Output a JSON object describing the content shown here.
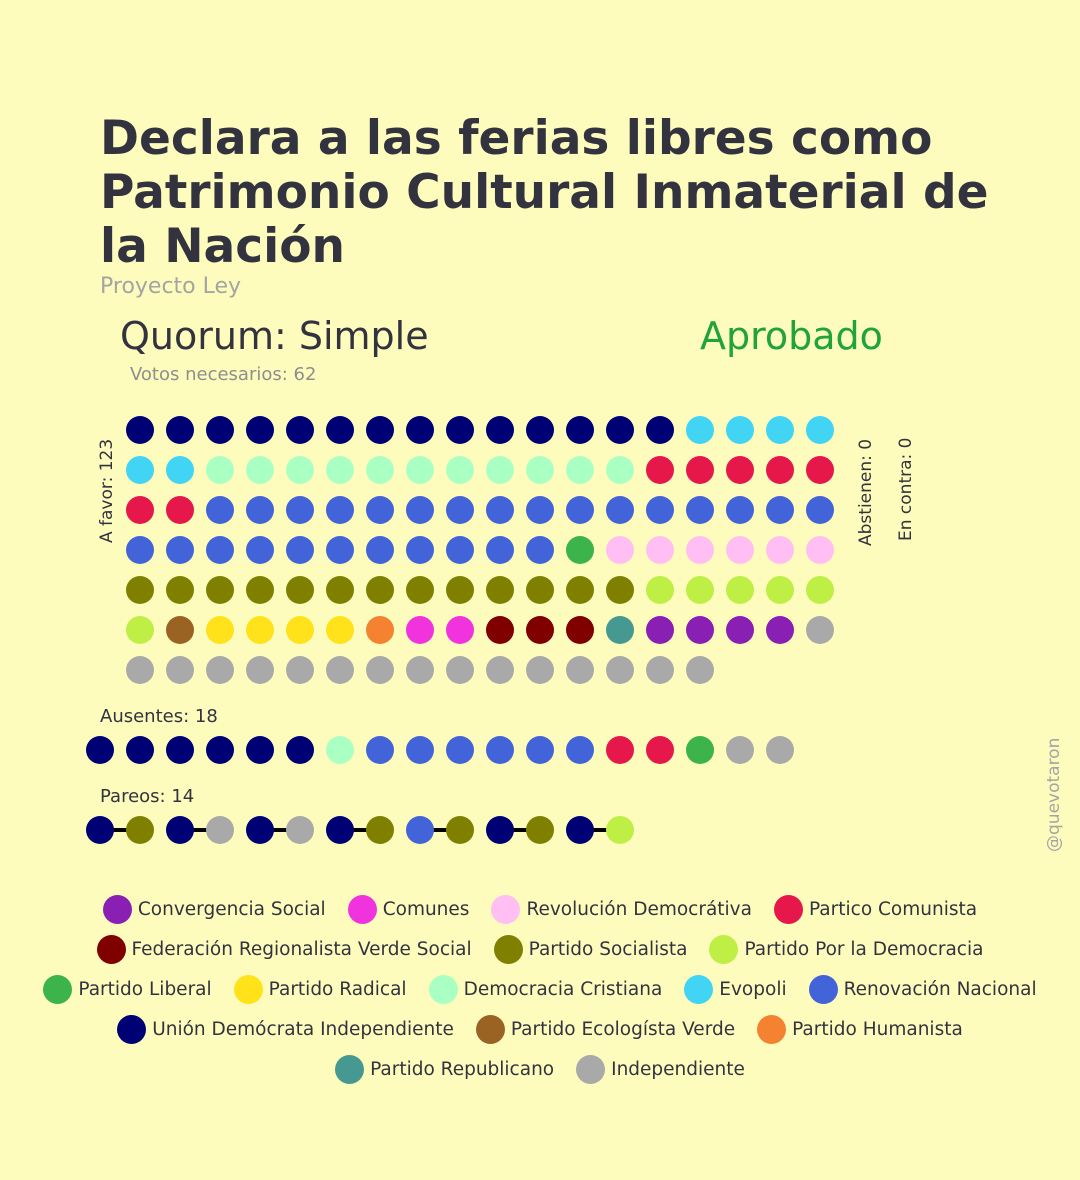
{
  "header": {
    "title": "Declara a las ferias libres como Patrimonio Cultural Inmaterial de la Nación",
    "subtitle": "Proyecto Ley",
    "quorum": "Quorum: Simple",
    "status": "Aprobado",
    "votes_needed": "Votos necesarios: 62"
  },
  "credit": "@quevotaron",
  "chart_data": {
    "type": "dot-matrix",
    "parties": [
      {
        "key": "CS",
        "name": "Convergencia Social",
        "color": "#8a1fb4"
      },
      {
        "key": "COM",
        "name": "Comunes",
        "color": "#f033dd"
      },
      {
        "key": "RD",
        "name": "Revolución Democrátiva",
        "color": "#ffbff3"
      },
      {
        "key": "PC",
        "name": "Partico Comunista",
        "color": "#e6184b"
      },
      {
        "key": "FRVS",
        "name": "Federación Regionalista Verde Social",
        "color": "#800000"
      },
      {
        "key": "PS",
        "name": "Partido Socialista",
        "color": "#808000"
      },
      {
        "key": "PPD",
        "name": "Partido Por la Democracia",
        "color": "#bfef45"
      },
      {
        "key": "PL",
        "name": "Partido Liberal",
        "color": "#3cb44b"
      },
      {
        "key": "PR",
        "name": "Partido Radical",
        "color": "#ffe219"
      },
      {
        "key": "DC",
        "name": "Democracia Cristiana",
        "color": "#aaffc3"
      },
      {
        "key": "EVO",
        "name": "Evopoli",
        "color": "#42d4f4"
      },
      {
        "key": "RN",
        "name": "Renovación Nacional",
        "color": "#4363d8"
      },
      {
        "key": "UDI",
        "name": "Unión Demócrata Independiente",
        "color": "#000075"
      },
      {
        "key": "PEV",
        "name": "Partido Ecologísta Verde",
        "color": "#9a6324"
      },
      {
        "key": "PH",
        "name": "Partido Humanista",
        "color": "#f58231"
      },
      {
        "key": "REP",
        "name": "Partido Republicano",
        "color": "#469990"
      },
      {
        "key": "IND",
        "name": "Independiente",
        "color": "#a9a9a9"
      }
    ],
    "legend_rows": [
      [
        "CS",
        "COM",
        "RD",
        "PC"
      ],
      [
        "FRVS",
        "PS",
        "PPD"
      ],
      [
        "PL",
        "PR",
        "DC",
        "EVO",
        "RN"
      ],
      [
        "UDI",
        "PEV",
        "PH"
      ],
      [
        "REP",
        "IND"
      ]
    ],
    "a_favor": {
      "label": "A favor: 123",
      "count": 123,
      "votes": [
        "UDI",
        "UDI",
        "UDI",
        "UDI",
        "UDI",
        "UDI",
        "UDI",
        "UDI",
        "UDI",
        "UDI",
        "UDI",
        "UDI",
        "UDI",
        "UDI",
        "EVO",
        "EVO",
        "EVO",
        "EVO",
        "EVO",
        "EVO",
        "DC",
        "DC",
        "DC",
        "DC",
        "DC",
        "DC",
        "DC",
        "DC",
        "DC",
        "DC",
        "DC",
        "PC",
        "PC",
        "PC",
        "PC",
        "PC",
        "PC",
        "PC",
        "RN",
        "RN",
        "RN",
        "RN",
        "RN",
        "RN",
        "RN",
        "RN",
        "RN",
        "RN",
        "RN",
        "RN",
        "RN",
        "RN",
        "RN",
        "RN",
        "RN",
        "RN",
        "RN",
        "RN",
        "RN",
        "RN",
        "RN",
        "RN",
        "RN",
        "RN",
        "RN",
        "PL",
        "RD",
        "RD",
        "RD",
        "RD",
        "RD",
        "RD",
        "PS",
        "PS",
        "PS",
        "PS",
        "PS",
        "PS",
        "PS",
        "PS",
        "PS",
        "PS",
        "PS",
        "PS",
        "PS",
        "PPD",
        "PPD",
        "PPD",
        "PPD",
        "PPD",
        "PPD",
        "PEV",
        "PR",
        "PR",
        "PR",
        "PR",
        "PH",
        "COM",
        "COM",
        "FRVS",
        "FRVS",
        "FRVS",
        "REP",
        "CS",
        "CS",
        "CS",
        "CS",
        "IND",
        "IND",
        "IND",
        "IND",
        "IND",
        "IND",
        "IND",
        "IND",
        "IND",
        "IND",
        "IND",
        "IND",
        "IND",
        "IND",
        "IND",
        "IND"
      ]
    },
    "abstienen": {
      "label": "Abstienen: 0",
      "count": 0
    },
    "en_contra": {
      "label": "En contra: 0",
      "count": 0
    },
    "ausentes": {
      "label": "Ausentes: 18",
      "count": 18,
      "votes": [
        "UDI",
        "UDI",
        "UDI",
        "UDI",
        "UDI",
        "UDI",
        "DC",
        "RN",
        "RN",
        "RN",
        "RN",
        "RN",
        "RN",
        "PC",
        "PC",
        "PL",
        "IND",
        "IND"
      ]
    },
    "pareos": {
      "label": "Pareos: 14",
      "count": 14,
      "pairs": [
        [
          "UDI",
          "PS"
        ],
        [
          "UDI",
          "IND"
        ],
        [
          "UDI",
          "IND"
        ],
        [
          "UDI",
          "PS"
        ],
        [
          "RN",
          "PS"
        ],
        [
          "UDI",
          "PS"
        ],
        [
          "UDI",
          "PPD"
        ]
      ]
    }
  }
}
